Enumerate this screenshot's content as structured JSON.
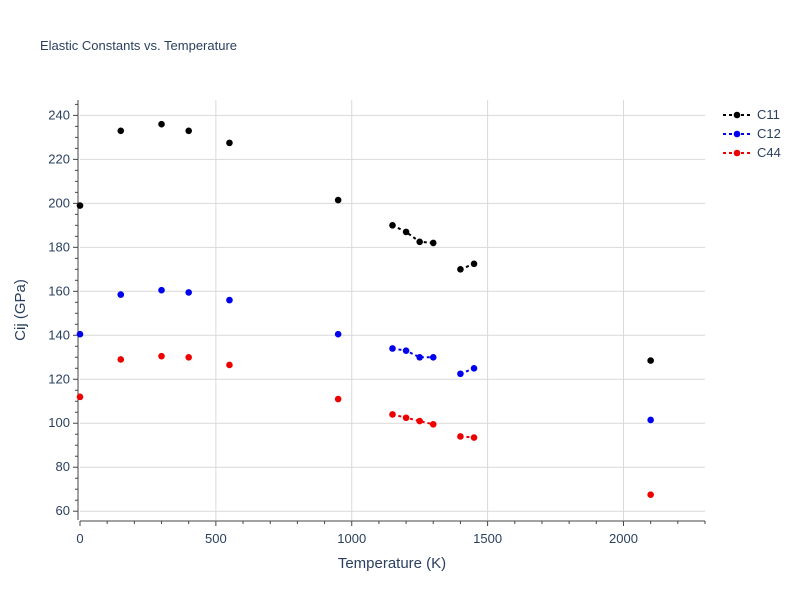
{
  "chart_data": {
    "type": "scatter",
    "title": "Elastic Constants vs. Temperature",
    "xlabel": "Temperature (K)",
    "ylabel": "Cij (GPa)",
    "xlim": [
      0,
      2300
    ],
    "ylim": [
      56,
      247
    ],
    "xticks": [
      0,
      500,
      1000,
      1500,
      2000
    ],
    "yticks": [
      60,
      80,
      100,
      120,
      140,
      160,
      180,
      200,
      220,
      240
    ],
    "grid": true,
    "legend_position": "top-right",
    "series": [
      {
        "name": "C11",
        "color": "#000000",
        "segments": [
          [
            {
              "x": 0,
              "y": 199
            }
          ],
          [
            {
              "x": 150,
              "y": 233
            }
          ],
          [
            {
              "x": 300,
              "y": 236
            }
          ],
          [
            {
              "x": 400,
              "y": 233
            }
          ],
          [
            {
              "x": 550,
              "y": 227.5
            }
          ],
          [
            {
              "x": 950,
              "y": 201.5
            }
          ],
          [
            {
              "x": 1150,
              "y": 190
            },
            {
              "x": 1200,
              "y": 187
            },
            {
              "x": 1250,
              "y": 182.5
            },
            {
              "x": 1300,
              "y": 182
            }
          ],
          [
            {
              "x": 1400,
              "y": 170
            },
            {
              "x": 1450,
              "y": 172.5
            }
          ],
          [
            {
              "x": 2100,
              "y": 128.5
            }
          ]
        ]
      },
      {
        "name": "C12",
        "color": "#0000ee",
        "segments": [
          [
            {
              "x": 0,
              "y": 140.5
            }
          ],
          [
            {
              "x": 150,
              "y": 158.5
            }
          ],
          [
            {
              "x": 300,
              "y": 160.5
            }
          ],
          [
            {
              "x": 400,
              "y": 159.5
            }
          ],
          [
            {
              "x": 550,
              "y": 156
            }
          ],
          [
            {
              "x": 950,
              "y": 140.5
            }
          ],
          [
            {
              "x": 1150,
              "y": 134
            },
            {
              "x": 1200,
              "y": 133
            },
            {
              "x": 1250,
              "y": 130
            },
            {
              "x": 1300,
              "y": 130
            }
          ],
          [
            {
              "x": 1400,
              "y": 122.5
            },
            {
              "x": 1450,
              "y": 125
            }
          ],
          [
            {
              "x": 2100,
              "y": 101.5
            }
          ]
        ]
      },
      {
        "name": "C44",
        "color": "#ee0000",
        "segments": [
          [
            {
              "x": 0,
              "y": 112
            }
          ],
          [
            {
              "x": 150,
              "y": 129
            }
          ],
          [
            {
              "x": 300,
              "y": 130.5
            }
          ],
          [
            {
              "x": 400,
              "y": 130
            }
          ],
          [
            {
              "x": 550,
              "y": 126.5
            }
          ],
          [
            {
              "x": 950,
              "y": 111
            }
          ],
          [
            {
              "x": 1150,
              "y": 104
            },
            {
              "x": 1200,
              "y": 102.5
            },
            {
              "x": 1250,
              "y": 101
            },
            {
              "x": 1300,
              "y": 99.5
            }
          ],
          [
            {
              "x": 1400,
              "y": 94
            },
            {
              "x": 1450,
              "y": 93.5
            }
          ],
          [
            {
              "x": 2100,
              "y": 67.5
            }
          ]
        ]
      }
    ]
  }
}
